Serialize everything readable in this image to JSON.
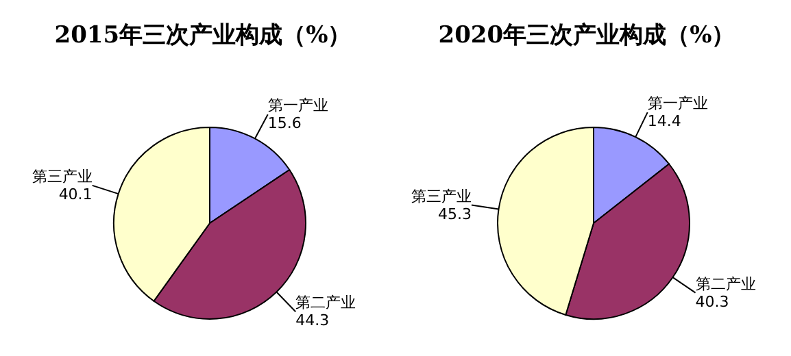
{
  "chart_data": [
    {
      "type": "pie",
      "title": "2015年三次产业构成（%）",
      "categories": [
        "第一产业",
        "第二产业",
        "第三产业"
      ],
      "values": [
        15.6,
        44.3,
        40.1
      ],
      "colors": [
        "#9999ff",
        "#993366",
        "#ffffcc"
      ],
      "data_labels": true
    },
    {
      "type": "pie",
      "title": "2020年三次产业构成（%）",
      "categories": [
        "第一产业",
        "第二产业",
        "第三产业"
      ],
      "values": [
        14.4,
        40.3,
        45.3
      ],
      "colors": [
        "#9999ff",
        "#993366",
        "#ffffcc"
      ],
      "data_labels": true
    }
  ]
}
